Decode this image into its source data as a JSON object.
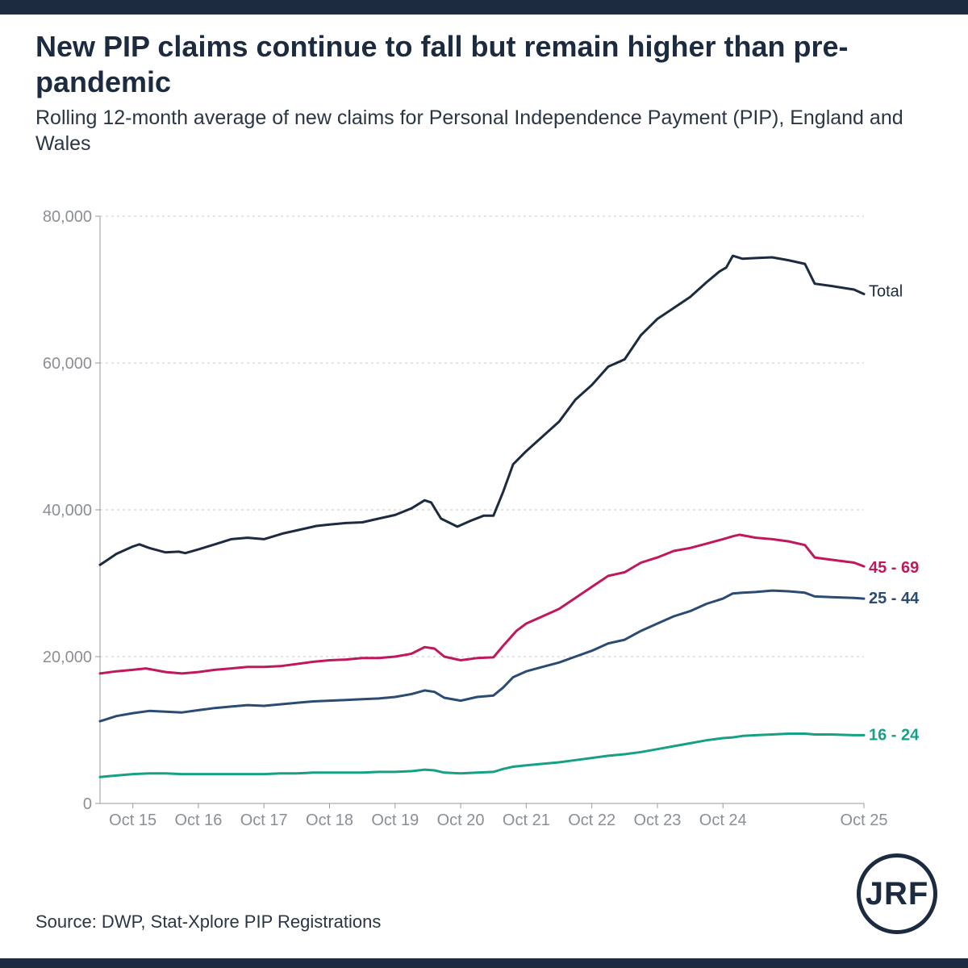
{
  "header": {
    "title": "New PIP claims continue to fall but remain higher than pre-pandemic",
    "subtitle": "Rolling 12-month average of new claims for Personal Independence Payment (PIP), England and Wales"
  },
  "footer": {
    "source": "Source: DWP, Stat-Xplore PIP Registrations",
    "logo_text": "JRF"
  },
  "chart_data": {
    "type": "line",
    "title": "New PIP claims continue to fall but remain higher than pre-pandemic",
    "xlabel": "",
    "ylabel": "",
    "x_start": "Apr 15",
    "x_end": "Oct 25",
    "x_ticks": [
      "Oct 15",
      "Oct 16",
      "Oct 17",
      "Oct 18",
      "Oct 19",
      "Oct 20",
      "Oct 21",
      "Oct 22",
      "Oct 23",
      "Oct 24",
      "Oct 25"
    ],
    "y_ticks": [
      "0",
      "20,000",
      "40,000",
      "60,000",
      "80,000"
    ],
    "ylim": [
      0,
      80000
    ],
    "grid": true,
    "series": [
      {
        "name": "Total",
        "label": "Total",
        "color": "#1c2b3f",
        "values": [
          [
            0,
            32500
          ],
          [
            0.5,
            34000
          ],
          [
            1,
            35000
          ],
          [
            1.2,
            35300
          ],
          [
            1.5,
            34800
          ],
          [
            2,
            34200
          ],
          [
            2.4,
            34300
          ],
          [
            2.6,
            34100
          ],
          [
            3,
            34600
          ],
          [
            3.5,
            35300
          ],
          [
            4,
            36000
          ],
          [
            4.5,
            36200
          ],
          [
            5,
            36000
          ],
          [
            5.6,
            36800
          ],
          [
            6,
            37200
          ],
          [
            6.6,
            37800
          ],
          [
            7,
            38000
          ],
          [
            7.5,
            38200
          ],
          [
            8,
            38300
          ],
          [
            8.5,
            38800
          ],
          [
            9,
            39300
          ],
          [
            9.5,
            40200
          ],
          [
            9.9,
            41300
          ],
          [
            10.1,
            41000
          ],
          [
            10.4,
            38800
          ],
          [
            10.9,
            37700
          ],
          [
            11.3,
            38500
          ],
          [
            11.7,
            39200
          ],
          [
            12,
            39200
          ],
          [
            12.3,
            42500
          ],
          [
            12.6,
            46200
          ],
          [
            13,
            48000
          ],
          [
            13.5,
            50000
          ],
          [
            14,
            52000
          ],
          [
            14.5,
            55000
          ],
          [
            15,
            57000
          ],
          [
            15.5,
            59500
          ],
          [
            16,
            60500
          ],
          [
            16.5,
            63800
          ],
          [
            17,
            66000
          ],
          [
            17.5,
            67500
          ],
          [
            18,
            69000
          ],
          [
            18.5,
            71000
          ],
          [
            18.9,
            72500
          ],
          [
            19.1,
            73000
          ],
          [
            19.3,
            74600
          ],
          [
            19.6,
            74200
          ],
          [
            20,
            74300
          ],
          [
            20.5,
            74400
          ],
          [
            21,
            74000
          ],
          [
            21.5,
            73500
          ],
          [
            21.8,
            70800
          ],
          [
            22.3,
            70500
          ],
          [
            23,
            70000
          ],
          [
            23.3,
            69400
          ]
        ]
      },
      {
        "name": "45 - 69",
        "label": "45 - 69",
        "color": "#c0185c",
        "values": [
          [
            0,
            17700
          ],
          [
            0.5,
            18000
          ],
          [
            1,
            18200
          ],
          [
            1.4,
            18400
          ],
          [
            2,
            17900
          ],
          [
            2.5,
            17700
          ],
          [
            3,
            17900
          ],
          [
            3.5,
            18200
          ],
          [
            4,
            18400
          ],
          [
            4.5,
            18600
          ],
          [
            5,
            18600
          ],
          [
            5.5,
            18700
          ],
          [
            6,
            19000
          ],
          [
            6.5,
            19300
          ],
          [
            7,
            19500
          ],
          [
            7.5,
            19600
          ],
          [
            8,
            19800
          ],
          [
            8.5,
            19800
          ],
          [
            9,
            20000
          ],
          [
            9.5,
            20400
          ],
          [
            9.9,
            21300
          ],
          [
            10.2,
            21100
          ],
          [
            10.5,
            20000
          ],
          [
            11,
            19500
          ],
          [
            11.5,
            19800
          ],
          [
            12,
            19900
          ],
          [
            12.3,
            21500
          ],
          [
            12.7,
            23500
          ],
          [
            13,
            24500
          ],
          [
            13.5,
            25500
          ],
          [
            14,
            26500
          ],
          [
            14.5,
            28000
          ],
          [
            15,
            29500
          ],
          [
            15.5,
            31000
          ],
          [
            16,
            31500
          ],
          [
            16.5,
            32800
          ],
          [
            17,
            33500
          ],
          [
            17.5,
            34400
          ],
          [
            18,
            34800
          ],
          [
            18.5,
            35400
          ],
          [
            19,
            36000
          ],
          [
            19.3,
            36400
          ],
          [
            19.5,
            36600
          ],
          [
            20,
            36200
          ],
          [
            20.5,
            36000
          ],
          [
            21,
            35700
          ],
          [
            21.5,
            35200
          ],
          [
            21.8,
            33500
          ],
          [
            22.3,
            33200
          ],
          [
            23,
            32800
          ],
          [
            23.3,
            32300
          ]
        ]
      },
      {
        "name": "25 - 44",
        "label": "25 - 44",
        "color": "#2a4c73",
        "values": [
          [
            0,
            11200
          ],
          [
            0.5,
            11900
          ],
          [
            1,
            12300
          ],
          [
            1.5,
            12600
          ],
          [
            2,
            12500
          ],
          [
            2.5,
            12400
          ],
          [
            3,
            12700
          ],
          [
            3.5,
            13000
          ],
          [
            4,
            13200
          ],
          [
            4.5,
            13400
          ],
          [
            5,
            13300
          ],
          [
            5.5,
            13500
          ],
          [
            6,
            13700
          ],
          [
            6.5,
            13900
          ],
          [
            7,
            14000
          ],
          [
            7.5,
            14100
          ],
          [
            8,
            14200
          ],
          [
            8.5,
            14300
          ],
          [
            9,
            14500
          ],
          [
            9.5,
            14900
          ],
          [
            9.9,
            15400
          ],
          [
            10.2,
            15200
          ],
          [
            10.5,
            14400
          ],
          [
            11,
            14000
          ],
          [
            11.5,
            14500
          ],
          [
            12,
            14700
          ],
          [
            12.3,
            15800
          ],
          [
            12.6,
            17200
          ],
          [
            13,
            18000
          ],
          [
            13.5,
            18600
          ],
          [
            14,
            19200
          ],
          [
            14.5,
            20000
          ],
          [
            15,
            20800
          ],
          [
            15.5,
            21800
          ],
          [
            16,
            22300
          ],
          [
            16.5,
            23500
          ],
          [
            17,
            24500
          ],
          [
            17.5,
            25500
          ],
          [
            18,
            26200
          ],
          [
            18.5,
            27200
          ],
          [
            19,
            27900
          ],
          [
            19.3,
            28600
          ],
          [
            19.6,
            28700
          ],
          [
            20,
            28800
          ],
          [
            20.5,
            29000
          ],
          [
            21,
            28900
          ],
          [
            21.5,
            28700
          ],
          [
            21.8,
            28200
          ],
          [
            22.3,
            28100
          ],
          [
            23,
            28000
          ],
          [
            23.3,
            27900
          ]
        ]
      },
      {
        "name": "16 - 24",
        "label": "16 - 24",
        "color": "#16a085",
        "values": [
          [
            0,
            3600
          ],
          [
            0.5,
            3800
          ],
          [
            1,
            4000
          ],
          [
            1.5,
            4100
          ],
          [
            2,
            4100
          ],
          [
            2.5,
            4000
          ],
          [
            3,
            4000
          ],
          [
            3.5,
            4000
          ],
          [
            4,
            4000
          ],
          [
            4.5,
            4000
          ],
          [
            5,
            4000
          ],
          [
            5.5,
            4100
          ],
          [
            6,
            4100
          ],
          [
            6.5,
            4200
          ],
          [
            7,
            4200
          ],
          [
            7.5,
            4200
          ],
          [
            8,
            4200
          ],
          [
            8.5,
            4300
          ],
          [
            9,
            4300
          ],
          [
            9.5,
            4400
          ],
          [
            9.9,
            4600
          ],
          [
            10.2,
            4500
          ],
          [
            10.5,
            4200
          ],
          [
            11,
            4100
          ],
          [
            11.5,
            4200
          ],
          [
            12,
            4300
          ],
          [
            12.3,
            4700
          ],
          [
            12.6,
            5000
          ],
          [
            13,
            5200
          ],
          [
            13.5,
            5400
          ],
          [
            14,
            5600
          ],
          [
            14.5,
            5900
          ],
          [
            15,
            6200
          ],
          [
            15.5,
            6500
          ],
          [
            16,
            6700
          ],
          [
            16.5,
            7000
          ],
          [
            17,
            7400
          ],
          [
            17.5,
            7800
          ],
          [
            18,
            8200
          ],
          [
            18.5,
            8600
          ],
          [
            19,
            8900
          ],
          [
            19.3,
            9000
          ],
          [
            19.6,
            9200
          ],
          [
            20,
            9300
          ],
          [
            20.5,
            9400
          ],
          [
            21,
            9500
          ],
          [
            21.5,
            9500
          ],
          [
            21.8,
            9400
          ],
          [
            22.3,
            9400
          ],
          [
            23,
            9300
          ],
          [
            23.3,
            9300
          ]
        ]
      }
    ]
  }
}
